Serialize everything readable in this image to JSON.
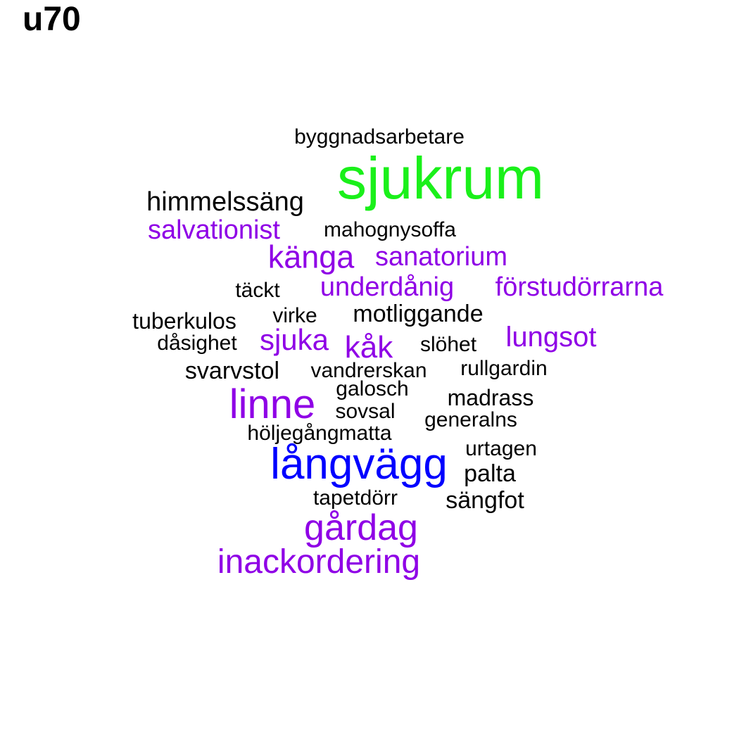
{
  "title": "u70",
  "palette": {
    "black": "#000000",
    "purple": "#8F00E6",
    "blue": "#0000FF",
    "green": "#1AF01A"
  },
  "words": [
    {
      "text": "byggnadsarbetare",
      "color": "black"
    },
    {
      "text": "sjukrum",
      "color": "green"
    },
    {
      "text": "himmelssäng",
      "color": "black"
    },
    {
      "text": "salvationist",
      "color": "purple"
    },
    {
      "text": "mahognysoffa",
      "color": "black"
    },
    {
      "text": "känga",
      "color": "purple"
    },
    {
      "text": "sanatorium",
      "color": "purple"
    },
    {
      "text": "täckt",
      "color": "black"
    },
    {
      "text": "underdånig",
      "color": "purple"
    },
    {
      "text": "förstudörrarna",
      "color": "purple"
    },
    {
      "text": "tuberkulos",
      "color": "black"
    },
    {
      "text": "virke",
      "color": "black"
    },
    {
      "text": "motliggande",
      "color": "black"
    },
    {
      "text": "lungsot",
      "color": "purple"
    },
    {
      "text": "dåsighet",
      "color": "black"
    },
    {
      "text": "sjuka",
      "color": "purple"
    },
    {
      "text": "kåk",
      "color": "purple"
    },
    {
      "text": "slöhet",
      "color": "black"
    },
    {
      "text": "svarvstol",
      "color": "black"
    },
    {
      "text": "vandrerskan",
      "color": "black"
    },
    {
      "text": "rullgardin",
      "color": "black"
    },
    {
      "text": "galosch",
      "color": "black"
    },
    {
      "text": "linne",
      "color": "purple"
    },
    {
      "text": "madrass",
      "color": "black"
    },
    {
      "text": "sovsal",
      "color": "black"
    },
    {
      "text": "generalns",
      "color": "black"
    },
    {
      "text": "höljegångmatta",
      "color": "black"
    },
    {
      "text": "urtagen",
      "color": "black"
    },
    {
      "text": "långvägg",
      "color": "blue"
    },
    {
      "text": "palta",
      "color": "black"
    },
    {
      "text": "tapetdörr",
      "color": "black"
    },
    {
      "text": "sängfot",
      "color": "black"
    },
    {
      "text": "gårdag",
      "color": "purple"
    },
    {
      "text": "inackordering",
      "color": "purple"
    }
  ]
}
